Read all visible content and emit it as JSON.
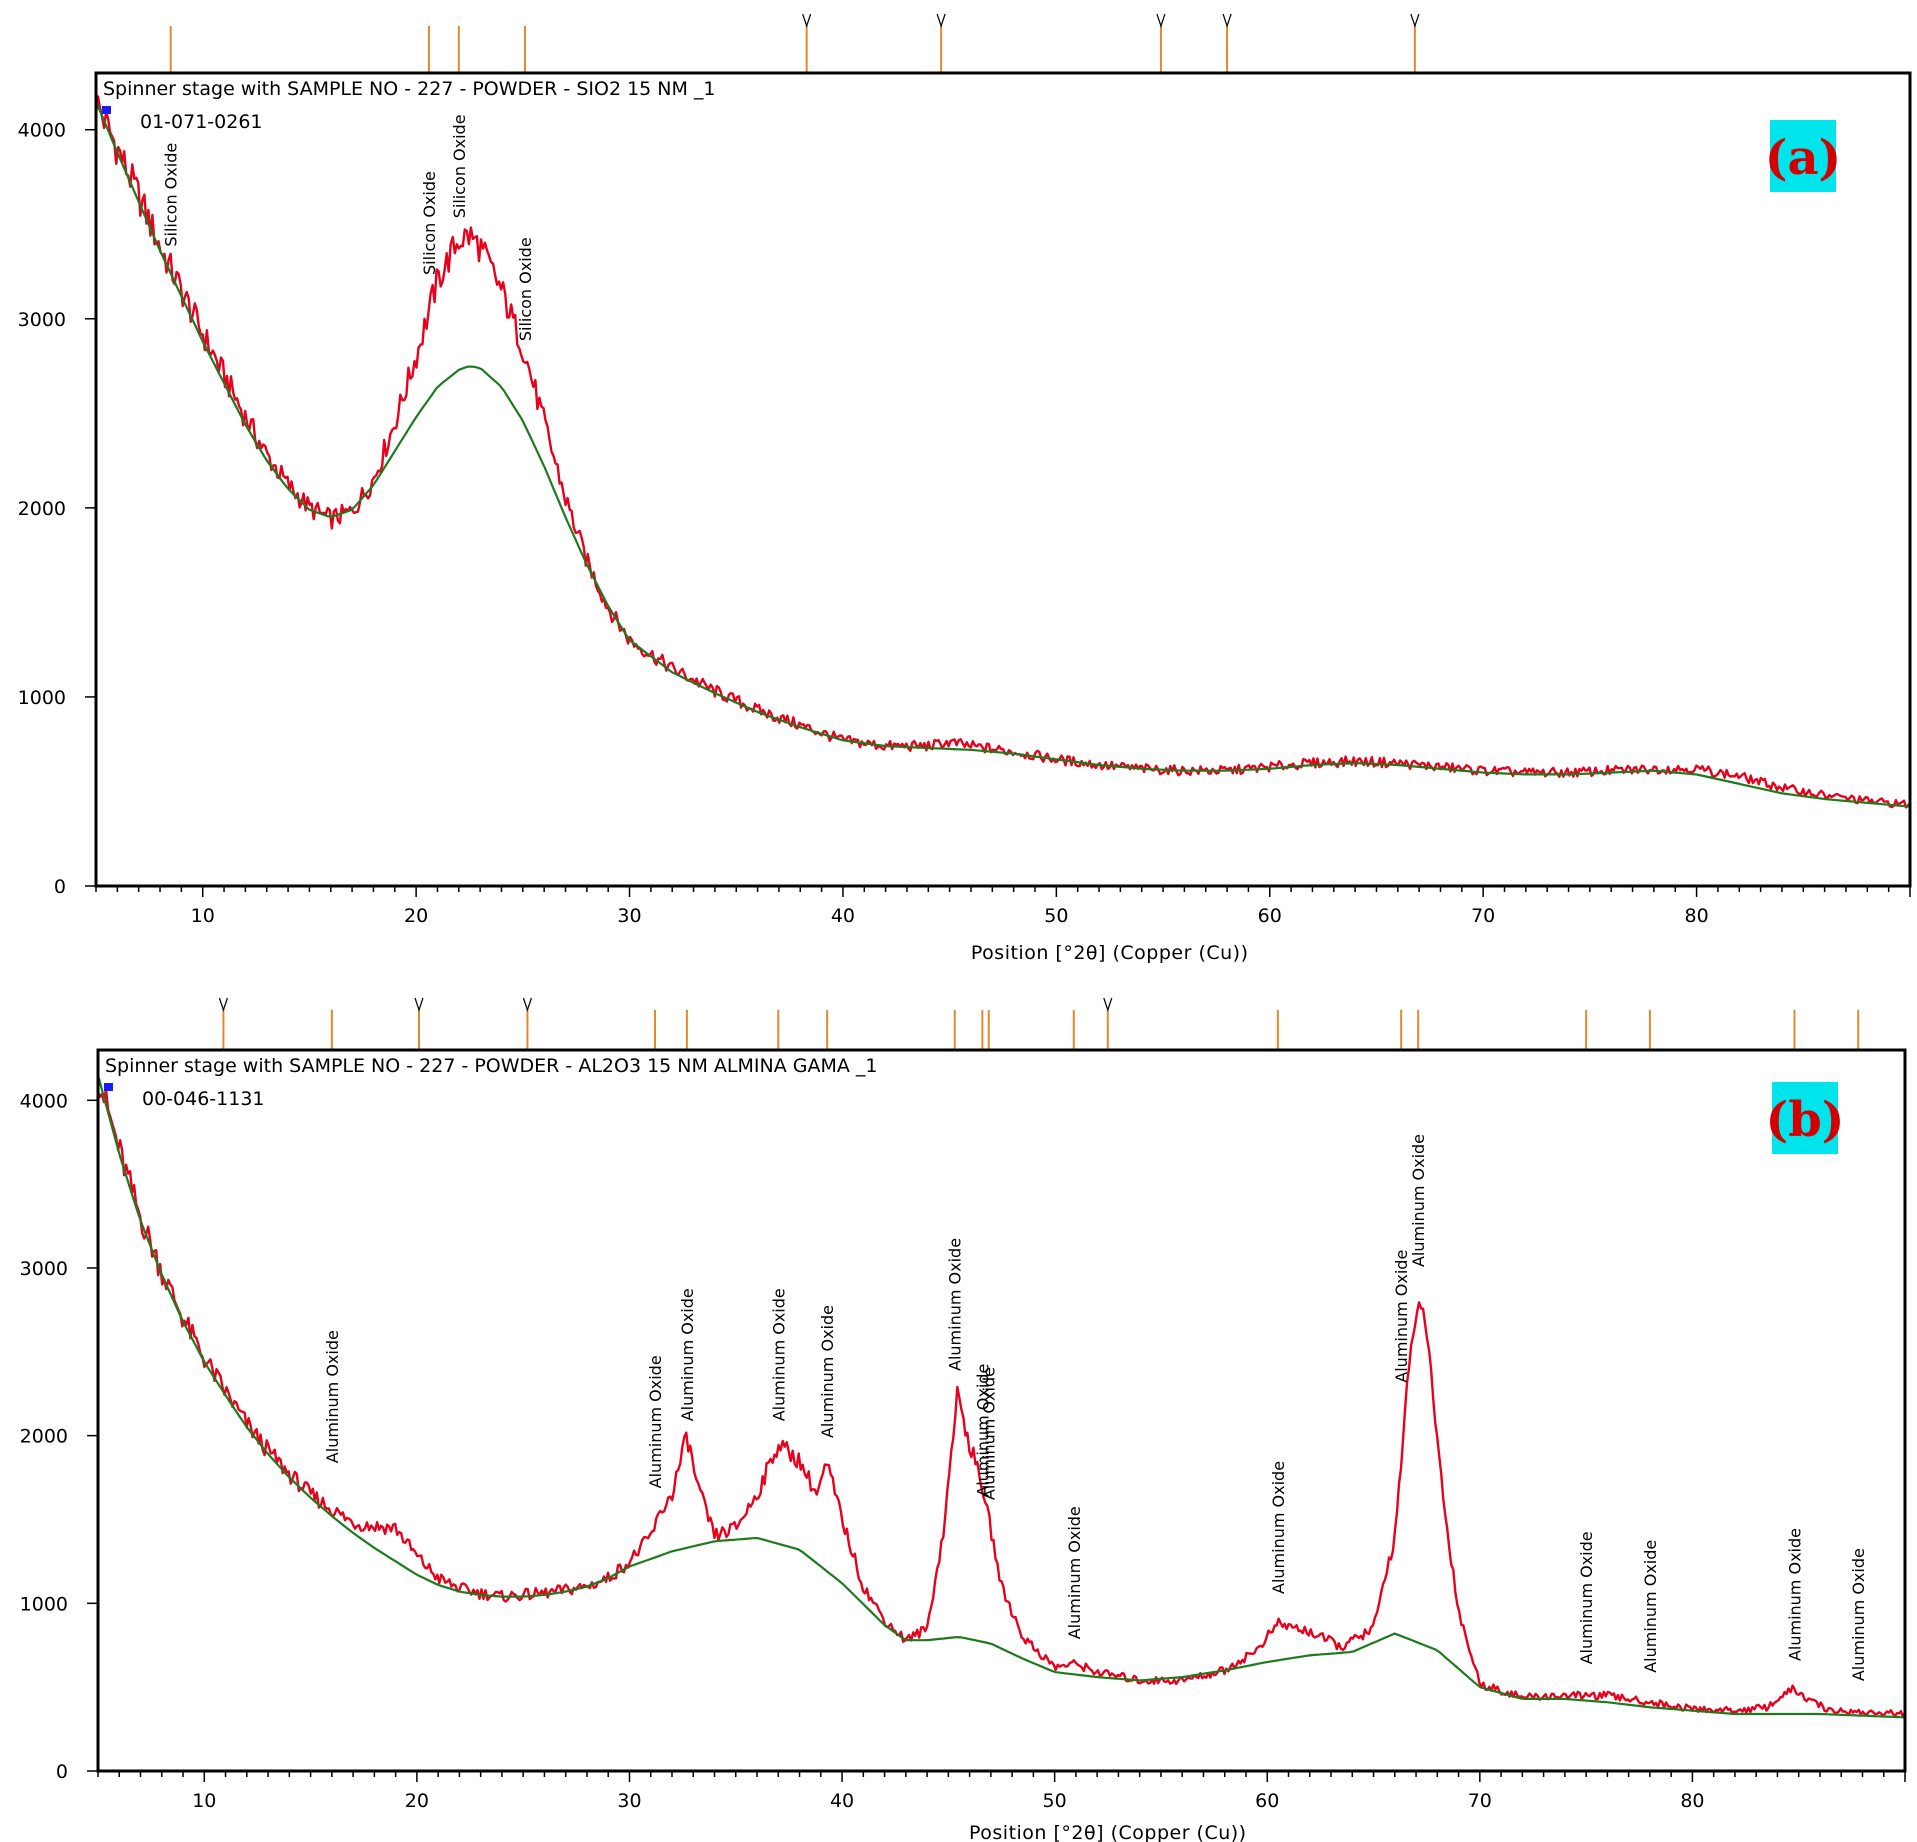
{
  "chart_data": [
    {
      "type": "line",
      "panel_tag": "(a)",
      "header": "Spinner stage with  SAMPLE NO - 227 - POWDER - SIO2 15 NM  _1",
      "reference_code": "01-071-0261",
      "xlabel": "Position [°2θ] (Copper (Cu))",
      "ylabel": "",
      "xlim": [
        5,
        90
      ],
      "ylim": [
        0,
        4300
      ],
      "x_ticks": [
        10,
        20,
        30,
        40,
        50,
        60,
        70,
        80
      ],
      "y_ticks": [
        0,
        1000,
        2000,
        3000,
        4000
      ],
      "colors": {
        "observed": "#e8001c",
        "background": "#1e7a1e",
        "marker": "#e08a2c",
        "tag_bg": "#00e5ec"
      },
      "series": [
        {
          "role": "observed",
          "x": [
            5,
            6,
            7,
            8,
            9,
            10,
            11,
            12,
            13,
            14,
            15,
            16,
            17,
            18,
            19,
            20,
            21,
            22,
            22.5,
            23,
            24,
            25,
            26,
            27,
            28,
            29,
            30,
            32,
            34,
            36,
            38,
            40,
            42,
            44,
            45,
            46,
            48,
            50,
            52,
            54,
            56,
            58,
            60,
            62,
            64,
            66,
            68,
            70,
            72,
            74,
            76,
            78,
            80,
            82,
            84,
            86,
            88,
            90
          ],
          "y": [
            4150,
            3900,
            3650,
            3380,
            3150,
            2920,
            2700,
            2480,
            2280,
            2120,
            2000,
            1940,
            1980,
            2150,
            2450,
            2800,
            3200,
            3420,
            3440,
            3380,
            3150,
            2850,
            2450,
            2050,
            1720,
            1470,
            1300,
            1150,
            1030,
            930,
            850,
            770,
            740,
            740,
            760,
            740,
            710,
            670,
            640,
            620,
            610,
            610,
            630,
            650,
            660,
            650,
            630,
            610,
            600,
            600,
            610,
            620,
            620,
            580,
            520,
            480,
            450,
            430
          ]
        },
        {
          "role": "background",
          "x": [
            5,
            6,
            7,
            8,
            9,
            10,
            11,
            12,
            13,
            14,
            15,
            16,
            17,
            18,
            19,
            20,
            21,
            22,
            22.5,
            23,
            24,
            25,
            26,
            27,
            28,
            29,
            30,
            32,
            34,
            36,
            38,
            40,
            42,
            44,
            46,
            48,
            50,
            52,
            54,
            56,
            58,
            60,
            62,
            64,
            66,
            68,
            70,
            72,
            74,
            76,
            78,
            80,
            82,
            84,
            86,
            88,
            90
          ],
          "y": [
            4150,
            3880,
            3620,
            3360,
            3120,
            2880,
            2660,
            2440,
            2250,
            2100,
            1990,
            1950,
            1990,
            2120,
            2300,
            2480,
            2640,
            2730,
            2750,
            2740,
            2640,
            2460,
            2220,
            1950,
            1700,
            1480,
            1300,
            1130,
            1020,
            920,
            840,
            770,
            740,
            730,
            720,
            700,
            670,
            640,
            620,
            610,
            610,
            620,
            640,
            650,
            640,
            620,
            600,
            590,
            590,
            600,
            610,
            590,
            540,
            490,
            460,
            440,
            420
          ]
        }
      ],
      "reference_peaks": [
        {
          "x": 8.5,
          "label": "Silicon Oxide",
          "flagged": false
        },
        {
          "x": 20.6,
          "label": "Silicon Oxide",
          "flagged": false
        },
        {
          "x": 22.0,
          "label": "Silicon Oxide",
          "flagged": false
        },
        {
          "x": 25.1,
          "label": "Silicon Oxide",
          "flagged": false
        },
        {
          "x": 38.3,
          "label": "",
          "flagged": true
        },
        {
          "x": 44.6,
          "label": "",
          "flagged": true
        },
        {
          "x": 54.9,
          "label": "",
          "flagged": true
        },
        {
          "x": 58.0,
          "label": "",
          "flagged": true
        },
        {
          "x": 66.8,
          "label": "",
          "flagged": true
        }
      ],
      "peak_labels": [
        {
          "x": 8.5,
          "y": 3350,
          "text": "Silicon Oxide"
        },
        {
          "x": 20.6,
          "y": 3200,
          "text": "Silicon Oxide"
        },
        {
          "x": 22.0,
          "y": 3500,
          "text": "Silicon Oxide"
        },
        {
          "x": 25.1,
          "y": 2850,
          "text": "Silicon Oxide"
        }
      ]
    },
    {
      "type": "line",
      "panel_tag": "(b)",
      "header": "Spinner stage with  SAMPLE NO - 227 - POWDER - AL2O3 15 NM ALMINA GAMA  _1",
      "reference_code": "00-046-1131",
      "xlabel": "Position [°2θ] (Copper (Cu))",
      "ylabel": "",
      "xlim": [
        5,
        90
      ],
      "ylim": [
        0,
        4300
      ],
      "x_ticks": [
        10,
        20,
        30,
        40,
        50,
        60,
        70,
        80
      ],
      "y_ticks": [
        0,
        1000,
        2000,
        3000,
        4000
      ],
      "colors": {
        "observed": "#e8001c",
        "background": "#1e7a1e",
        "marker": "#e08a2c",
        "tag_bg": "#00e5ec"
      },
      "series": [
        {
          "role": "observed",
          "x": [
            5,
            6,
            7,
            8,
            9,
            10,
            11,
            12,
            13,
            14,
            15,
            16,
            17,
            18,
            19,
            20,
            21,
            22,
            23,
            24,
            25,
            26,
            27,
            28,
            29,
            30,
            31,
            31.5,
            32,
            32.7,
            33.2,
            34,
            35,
            36,
            37,
            38,
            38.8,
            39.3,
            40,
            41,
            42,
            43,
            44,
            44.8,
            45.4,
            46,
            46.6,
            47.5,
            48.5,
            50,
            51,
            52,
            54,
            56,
            58,
            59.5,
            60.5,
            62,
            63.5,
            65,
            66,
            66.6,
            67.1,
            67.6,
            68.3,
            69,
            70,
            72,
            74,
            76,
            78,
            80,
            82,
            83.5,
            84.7,
            85.5,
            86.5,
            88,
            90
          ],
          "y": [
            4150,
            3700,
            3300,
            2980,
            2700,
            2460,
            2260,
            2070,
            1910,
            1770,
            1650,
            1560,
            1480,
            1460,
            1450,
            1280,
            1150,
            1090,
            1060,
            1040,
            1050,
            1060,
            1080,
            1100,
            1150,
            1250,
            1400,
            1550,
            1650,
            2000,
            1700,
            1400,
            1450,
            1650,
            1950,
            1850,
            1650,
            1830,
            1500,
            1100,
            900,
            780,
            850,
            1450,
            2250,
            1950,
            1700,
            1100,
            800,
            620,
            640,
            590,
            540,
            540,
            600,
            720,
            880,
            830,
            740,
            850,
            1400,
            2300,
            2850,
            2500,
            1600,
            950,
            520,
            440,
            450,
            450,
            410,
            370,
            360,
            380,
            490,
            420,
            360,
            350,
            340
          ]
        },
        {
          "role": "background",
          "x": [
            5,
            6,
            7,
            8,
            9,
            10,
            11,
            12,
            13,
            14,
            15,
            16,
            17,
            18,
            19,
            20,
            21,
            22,
            23,
            24,
            25,
            26,
            27,
            28,
            29,
            30,
            32,
            34,
            36,
            38,
            40,
            42,
            43,
            44,
            45.5,
            47,
            48.5,
            50,
            52,
            54,
            56,
            58,
            60,
            62,
            64,
            66,
            68,
            70,
            72,
            74,
            76,
            78,
            80,
            82,
            84,
            86,
            88,
            90
          ],
          "y": [
            4150,
            3680,
            3280,
            2960,
            2680,
            2440,
            2240,
            2050,
            1890,
            1750,
            1630,
            1520,
            1420,
            1330,
            1250,
            1170,
            1110,
            1070,
            1050,
            1040,
            1040,
            1050,
            1070,
            1100,
            1150,
            1220,
            1310,
            1370,
            1390,
            1320,
            1120,
            870,
            780,
            780,
            800,
            760,
            670,
            590,
            560,
            540,
            560,
            600,
            650,
            690,
            710,
            820,
            720,
            500,
            430,
            430,
            410,
            380,
            360,
            340,
            340,
            340,
            330,
            320
          ]
        }
      ],
      "reference_peaks": [
        {
          "x": 10.9,
          "label": "",
          "flagged": true
        },
        {
          "x": 16.0,
          "label": "Aluminum Oxide",
          "flagged": false
        },
        {
          "x": 20.1,
          "label": "",
          "flagged": true
        },
        {
          "x": 25.2,
          "label": "",
          "flagged": true
        },
        {
          "x": 31.2,
          "label": "Aluminum Oxide",
          "flagged": false
        },
        {
          "x": 32.7,
          "label": "Aluminum Oxide",
          "flagged": false
        },
        {
          "x": 37.0,
          "label": "Aluminum Oxide",
          "flagged": false
        },
        {
          "x": 39.3,
          "label": "Aluminum Oxide",
          "flagged": false
        },
        {
          "x": 45.3,
          "label": "Aluminum Oxide",
          "flagged": false
        },
        {
          "x": 46.6,
          "label": "Aluminum Oxide",
          "flagged": false
        },
        {
          "x": 46.9,
          "label": "Aluminum Oxide",
          "flagged": false
        },
        {
          "x": 50.9,
          "label": "Aluminum Oxide",
          "flagged": false
        },
        {
          "x": 52.5,
          "label": "",
          "flagged": true
        },
        {
          "x": 60.5,
          "label": "Aluminum Oxide",
          "flagged": false
        },
        {
          "x": 66.3,
          "label": "Aluminum Oxide",
          "flagged": false
        },
        {
          "x": 67.1,
          "label": "Aluminum Oxide",
          "flagged": false
        },
        {
          "x": 75.0,
          "label": "Aluminum Oxide",
          "flagged": false
        },
        {
          "x": 78.0,
          "label": "Aluminum Oxide",
          "flagged": false
        },
        {
          "x": 84.8,
          "label": "Aluminum Oxide",
          "flagged": false
        },
        {
          "x": 87.8,
          "label": "Aluminum Oxide",
          "flagged": false
        }
      ],
      "peak_labels": [
        {
          "x": 16.0,
          "y": 1800,
          "text": "Aluminum Oxide"
        },
        {
          "x": 31.2,
          "y": 1650,
          "text": "Aluminum Oxide"
        },
        {
          "x": 32.7,
          "y": 2050,
          "text": "Aluminum Oxide"
        },
        {
          "x": 37.0,
          "y": 2050,
          "text": "Aluminum Oxide"
        },
        {
          "x": 39.3,
          "y": 1950,
          "text": "Aluminum Oxide"
        },
        {
          "x": 45.3,
          "y": 2350,
          "text": "Aluminum Oxide"
        },
        {
          "x": 46.6,
          "y": 1600,
          "text": "Aluminum Oxide"
        },
        {
          "x": 46.9,
          "y": 1580,
          "text": "Aluminum Oxide"
        },
        {
          "x": 50.9,
          "y": 750,
          "text": "Aluminum Oxide"
        },
        {
          "x": 60.5,
          "y": 1020,
          "text": "Aluminum Oxide"
        },
        {
          "x": 66.3,
          "y": 2280,
          "text": "Aluminum Oxide"
        },
        {
          "x": 67.1,
          "y": 2970,
          "text": "Aluminum Oxide"
        },
        {
          "x": 75.0,
          "y": 600,
          "text": "Aluminum Oxide"
        },
        {
          "x": 78.0,
          "y": 550,
          "text": "Aluminum Oxide"
        },
        {
          "x": 84.8,
          "y": 620,
          "text": "Aluminum Oxide"
        },
        {
          "x": 87.8,
          "y": 500,
          "text": "Aluminum Oxide"
        }
      ]
    }
  ]
}
